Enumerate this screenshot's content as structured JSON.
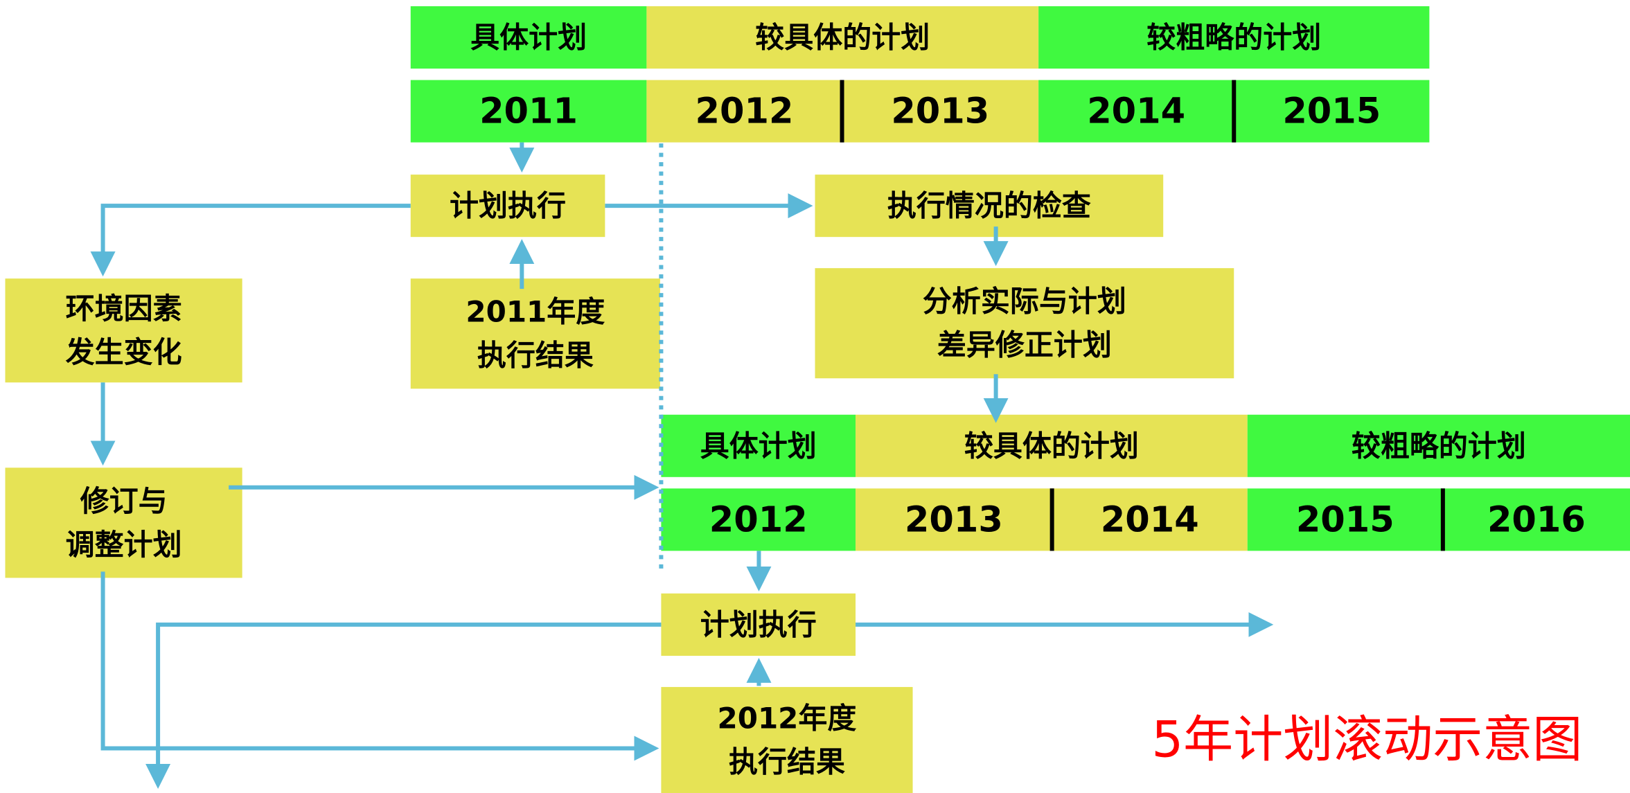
{
  "plans": [
    {
      "headers": [
        "具体计划",
        "较具体的计划",
        "较粗略的计划"
      ],
      "years": [
        2011,
        2012,
        2013,
        2014,
        2015
      ]
    },
    {
      "headers": [
        "具体计划",
        "较具体的计划",
        "较粗略的计划"
      ],
      "years": [
        2012,
        2013,
        2014,
        2015,
        2016
      ]
    }
  ],
  "boxes": {
    "execute_1": "计划执行",
    "result_1": [
      "2011年度",
      "执行结果"
    ],
    "check": "执行情况的检查",
    "analyze": [
      "分析实际与计划",
      "差异修正计划"
    ],
    "environment": [
      "环境因素",
      "发生变化"
    ],
    "revise": [
      "修订与",
      "调整计划"
    ],
    "execute_2": "计划执行",
    "result_2": [
      "2012年度",
      "执行结果"
    ]
  },
  "caption": "5年计划滚动示意图"
}
